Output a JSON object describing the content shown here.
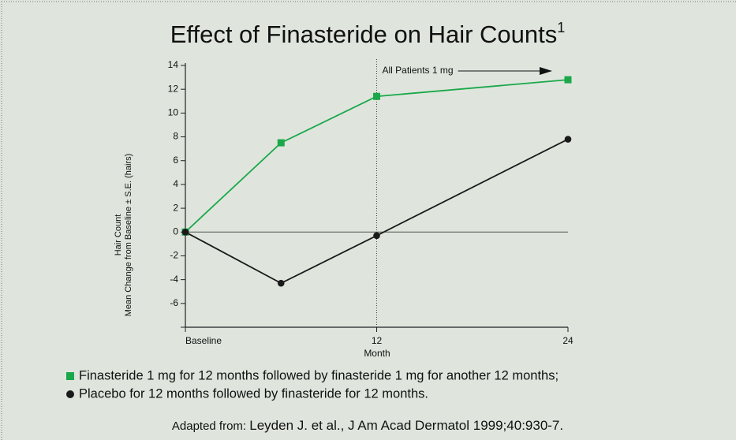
{
  "chart_data": {
    "type": "line",
    "title": "Effect of Finasteride on Hair Counts",
    "title_superscript": "1",
    "ylabel": [
      "Hair Count",
      "Mean Change from Baseline ± S.E. (hairs)"
    ],
    "xlabel": "Month",
    "x": [
      0,
      6,
      12,
      24
    ],
    "xlim": [
      0,
      24
    ],
    "xticks": [
      {
        "value": 0,
        "label": "Baseline"
      },
      12,
      24
    ],
    "ylim": [
      -8,
      14
    ],
    "yticks": [
      -6,
      -4,
      -2,
      0,
      2,
      4,
      6,
      8,
      10,
      12,
      14
    ],
    "series": [
      {
        "name": "Finasteride 1 mg for 12 months followed by finasteride 1 mg for another 12 months;",
        "color": "#1aa84a",
        "marker": "square",
        "values": [
          0,
          7.5,
          11.4,
          12.8
        ]
      },
      {
        "name": "Placebo for 12 months followed by finasteride for 12 months.",
        "color": "#1a1a1a",
        "marker": "circle",
        "values": [
          0,
          -4.3,
          -0.3,
          7.8
        ]
      }
    ],
    "annotation": {
      "text": "All Patients 1 mg",
      "x": 12
    },
    "source_prefix": "Adapted from: ",
    "source": "Leyden J. et al., J Am Acad Dermatol 1999;40:930-7."
  }
}
